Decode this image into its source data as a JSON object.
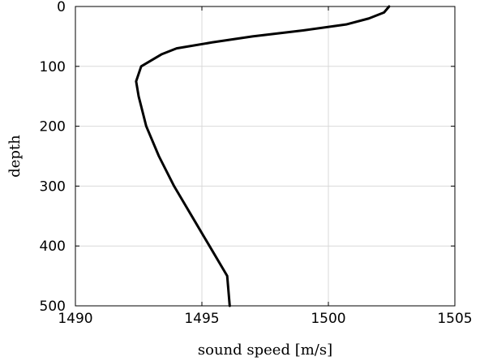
{
  "chart_data": {
    "type": "line",
    "title": "",
    "xlabel": "sound speed [m/s]",
    "ylabel": "depth",
    "xlim": [
      1490,
      1505
    ],
    "ylim": [
      0,
      500
    ],
    "y_axis_reversed": true,
    "grid": true,
    "legend": "none",
    "x_ticks": [
      1490,
      1495,
      1500,
      1505
    ],
    "y_ticks": [
      0,
      100,
      200,
      300,
      400,
      500
    ],
    "series": [
      {
        "color": "#000000",
        "points": [
          {
            "x": 1502.4,
            "y": 0
          },
          {
            "x": 1502.2,
            "y": 10
          },
          {
            "x": 1501.6,
            "y": 20
          },
          {
            "x": 1500.7,
            "y": 30
          },
          {
            "x": 1499.0,
            "y": 40
          },
          {
            "x": 1497.0,
            "y": 50
          },
          {
            "x": 1495.4,
            "y": 60
          },
          {
            "x": 1494.0,
            "y": 70
          },
          {
            "x": 1493.4,
            "y": 80
          },
          {
            "x": 1492.6,
            "y": 100
          },
          {
            "x": 1492.4,
            "y": 125
          },
          {
            "x": 1492.5,
            "y": 150
          },
          {
            "x": 1492.8,
            "y": 200
          },
          {
            "x": 1493.3,
            "y": 250
          },
          {
            "x": 1493.9,
            "y": 300
          },
          {
            "x": 1494.6,
            "y": 350
          },
          {
            "x": 1495.3,
            "y": 400
          },
          {
            "x": 1496.0,
            "y": 450
          },
          {
            "x": 1496.1,
            "y": 500
          }
        ]
      }
    ]
  }
}
